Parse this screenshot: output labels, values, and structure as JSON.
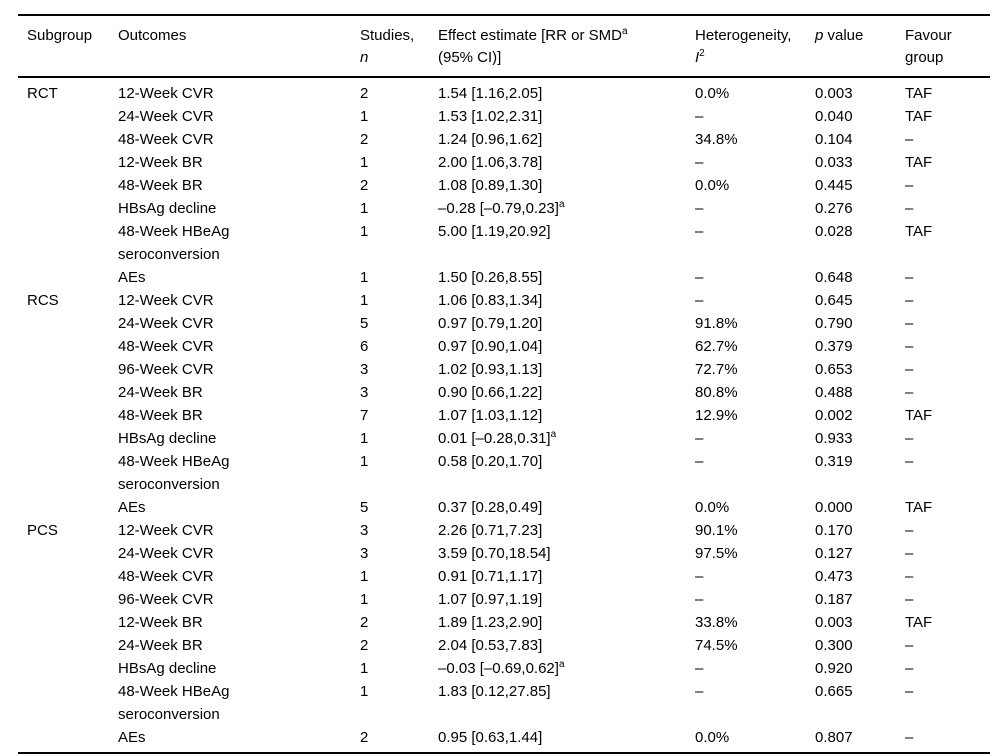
{
  "table": {
    "header": {
      "subgroup": "Subgroup",
      "outcomes": "Outcomes",
      "studies_line1": "Studies,",
      "studies_line2_italic": "n",
      "effect_line1": "Effect estimate [RR or SMD",
      "effect_sup": "a",
      "effect_line2": "(95% CI)]",
      "het_line1": "Heterogeneity,",
      "het_line2_italic": "I",
      "het_sup": "2",
      "p_italic": "p",
      "p_rest": " value",
      "favour_line1": "Favour",
      "favour_line2": "group"
    },
    "rows": [
      {
        "subgroup": "RCT",
        "outcome": "12-Week CVR",
        "n": "2",
        "effect": "1.54 [1.16,2.05]",
        "effect_sup": "",
        "het": "0.0%",
        "p": "0.003",
        "favour": "TAF"
      },
      {
        "subgroup": "",
        "outcome": "24-Week CVR",
        "n": "1",
        "effect": "1.53 [1.02,2.31]",
        "effect_sup": "",
        "het": "–",
        "p": "0.040",
        "favour": "TAF"
      },
      {
        "subgroup": "",
        "outcome": "48-Week CVR",
        "n": "2",
        "effect": "1.24 [0.96,1.62]",
        "effect_sup": "",
        "het": "34.8%",
        "p": "0.104",
        "favour": "–"
      },
      {
        "subgroup": "",
        "outcome": "12-Week BR",
        "n": "1",
        "effect": "2.00 [1.06,3.78]",
        "effect_sup": "",
        "het": "–",
        "p": "0.033",
        "favour": "TAF"
      },
      {
        "subgroup": "",
        "outcome": "48-Week BR",
        "n": "2",
        "effect": "1.08 [0.89,1.30]",
        "effect_sup": "",
        "het": "0.0%",
        "p": "0.445",
        "favour": "–"
      },
      {
        "subgroup": "",
        "outcome": "HBsAg decline",
        "n": "1",
        "effect": "–0.28 [–0.79,0.23]",
        "effect_sup": "a",
        "het": "–",
        "p": "0.276",
        "favour": "–"
      },
      {
        "subgroup": "",
        "outcome": "48-Week HBeAg seroconversion",
        "n": "1",
        "effect": "5.00 [1.19,20.92]",
        "effect_sup": "",
        "het": "–",
        "p": "0.028",
        "favour": "TAF"
      },
      {
        "subgroup": "",
        "outcome": "AEs",
        "n": "1",
        "effect": "1.50 [0.26,8.55]",
        "effect_sup": "",
        "het": "–",
        "p": "0.648",
        "favour": "–"
      },
      {
        "subgroup": "RCS",
        "outcome": "12-Week CVR",
        "n": "1",
        "effect": "1.06 [0.83,1.34]",
        "effect_sup": "",
        "het": "–",
        "p": "0.645",
        "favour": "–"
      },
      {
        "subgroup": "",
        "outcome": "24-Week CVR",
        "n": "5",
        "effect": "0.97 [0.79,1.20]",
        "effect_sup": "",
        "het": "91.8%",
        "p": "0.790",
        "favour": "–"
      },
      {
        "subgroup": "",
        "outcome": "48-Week CVR",
        "n": "6",
        "effect": "0.97 [0.90,1.04]",
        "effect_sup": "",
        "het": "62.7%",
        "p": "0.379",
        "favour": "–"
      },
      {
        "subgroup": "",
        "outcome": "96-Week CVR",
        "n": "3",
        "effect": "1.02 [0.93,1.13]",
        "effect_sup": "",
        "het": "72.7%",
        "p": "0.653",
        "favour": "–"
      },
      {
        "subgroup": "",
        "outcome": "24-Week BR",
        "n": "3",
        "effect": "0.90 [0.66,1.22]",
        "effect_sup": "",
        "het": "80.8%",
        "p": "0.488",
        "favour": "–"
      },
      {
        "subgroup": "",
        "outcome": "48-Week BR",
        "n": "7",
        "effect": "1.07 [1.03,1.12]",
        "effect_sup": "",
        "het": "12.9%",
        "p": "0.002",
        "favour": "TAF"
      },
      {
        "subgroup": "",
        "outcome": "HBsAg decline",
        "n": "1",
        "effect": "0.01 [–0.28,0.31]",
        "effect_sup": "a",
        "het": "–",
        "p": "0.933",
        "favour": "–"
      },
      {
        "subgroup": "",
        "outcome": "48-Week HBeAg seroconversion",
        "n": "1",
        "effect": "0.58 [0.20,1.70]",
        "effect_sup": "",
        "het": "–",
        "p": "0.319",
        "favour": "–"
      },
      {
        "subgroup": "",
        "outcome": "AEs",
        "n": "5",
        "effect": "0.37 [0.28,0.49]",
        "effect_sup": "",
        "het": "0.0%",
        "p": "0.000",
        "favour": "TAF"
      },
      {
        "subgroup": "PCS",
        "outcome": "12-Week CVR",
        "n": "3",
        "effect": "2.26 [0.71,7.23]",
        "effect_sup": "",
        "het": "90.1%",
        "p": "0.170",
        "favour": "–"
      },
      {
        "subgroup": "",
        "outcome": "24-Week CVR",
        "n": "3",
        "effect": "3.59 [0.70,18.54]",
        "effect_sup": "",
        "het": "97.5%",
        "p": "0.127",
        "favour": "–"
      },
      {
        "subgroup": "",
        "outcome": "48-Week CVR",
        "n": "1",
        "effect": "0.91 [0.71,1.17]",
        "effect_sup": "",
        "het": "–",
        "p": "0.473",
        "favour": "–"
      },
      {
        "subgroup": "",
        "outcome": "96-Week CVR",
        "n": "1",
        "effect": "1.07 [0.97,1.19]",
        "effect_sup": "",
        "het": "–",
        "p": "0.187",
        "favour": "–"
      },
      {
        "subgroup": "",
        "outcome": "12-Week BR",
        "n": "2",
        "effect": "1.89 [1.23,2.90]",
        "effect_sup": "",
        "het": "33.8%",
        "p": "0.003",
        "favour": "TAF"
      },
      {
        "subgroup": "",
        "outcome": "24-Week BR",
        "n": "2",
        "effect": "2.04 [0.53,7.83]",
        "effect_sup": "",
        "het": "74.5%",
        "p": "0.300",
        "favour": "–"
      },
      {
        "subgroup": "",
        "outcome": "HBsAg decline",
        "n": "1",
        "effect": "–0.03 [–0.69,0.62]",
        "effect_sup": "a",
        "het": "–",
        "p": "0.920",
        "favour": "–"
      },
      {
        "subgroup": "",
        "outcome": "48-Week HBeAg seroconversion",
        "n": "1",
        "effect": "1.83 [0.12,27.85]",
        "effect_sup": "",
        "het": "–",
        "p": "0.665",
        "favour": "–"
      },
      {
        "subgroup": "",
        "outcome": "AEs",
        "n": "2",
        "effect": "0.95 [0.63,1.44]",
        "effect_sup": "",
        "het": "0.0%",
        "p": "0.807",
        "favour": "–"
      }
    ]
  }
}
